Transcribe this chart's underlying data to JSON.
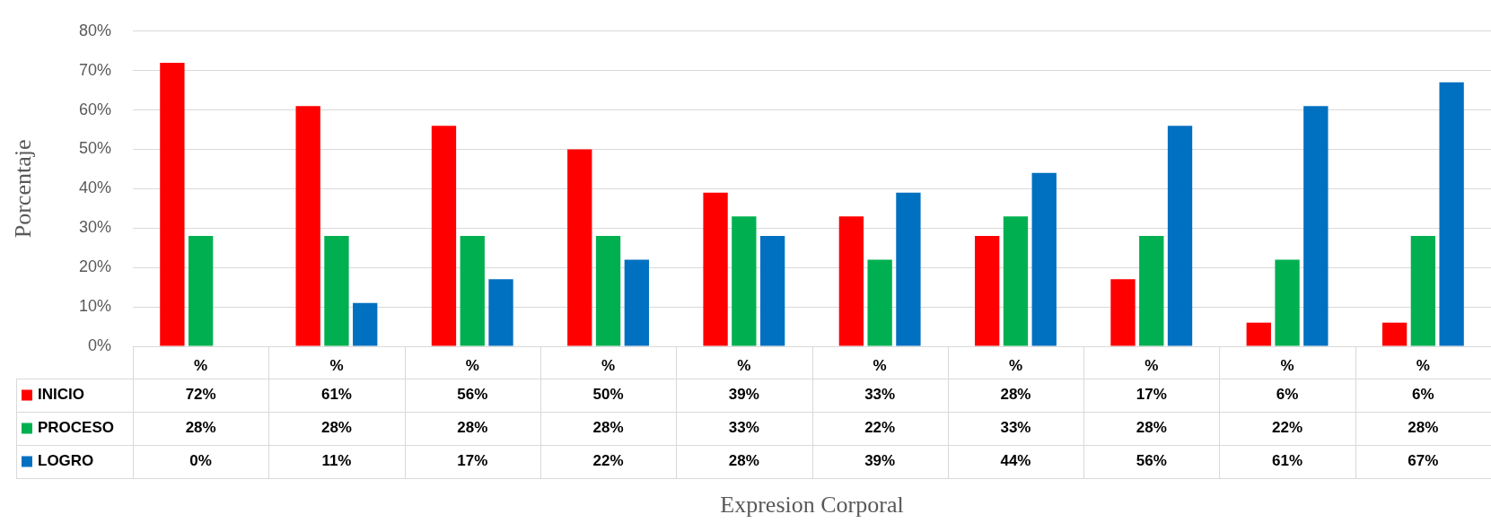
{
  "chart_data": {
    "type": "bar",
    "ylabel": "Porcentaje",
    "annotations": [
      "Expresion Corporal"
    ],
    "categories": [
      "%",
      "%",
      "%",
      "%",
      "%",
      "%",
      "%",
      "%",
      "%",
      "%"
    ],
    "series": [
      {
        "name": "INICIO",
        "color": "#ff0000",
        "values": [
          72,
          61,
          56,
          50,
          39,
          33,
          28,
          17,
          6,
          6
        ],
        "value_labels": [
          "72%",
          "61%",
          "56%",
          "50%",
          "39%",
          "33%",
          "28%",
          "17%",
          "6%",
          "6%"
        ]
      },
      {
        "name": "PROCESO",
        "color": "#00b050",
        "values": [
          28,
          28,
          28,
          28,
          33,
          22,
          33,
          28,
          22,
          28
        ],
        "value_labels": [
          "28%",
          "28%",
          "28%",
          "28%",
          "33%",
          "22%",
          "33%",
          "28%",
          "22%",
          "28%"
        ]
      },
      {
        "name": "LOGRO",
        "color": "#0070c0",
        "values": [
          0,
          11,
          17,
          22,
          28,
          39,
          44,
          56,
          61,
          67
        ],
        "value_labels": [
          "0%",
          "11%",
          "17%",
          "22%",
          "28%",
          "39%",
          "44%",
          "56%",
          "61%",
          "67%"
        ]
      }
    ],
    "ylim": [
      0,
      80
    ],
    "yticks": [
      {
        "value": 0,
        "label": "0%"
      },
      {
        "value": 10,
        "label": "10%"
      },
      {
        "value": 20,
        "label": "20%"
      },
      {
        "value": 30,
        "label": "30%"
      },
      {
        "value": 40,
        "label": "40%"
      },
      {
        "value": 50,
        "label": "50%"
      },
      {
        "value": 60,
        "label": "60%"
      },
      {
        "value": 70,
        "label": "70%"
      },
      {
        "value": 80,
        "label": "80%"
      }
    ],
    "grid": "y",
    "legend": "bottom"
  }
}
